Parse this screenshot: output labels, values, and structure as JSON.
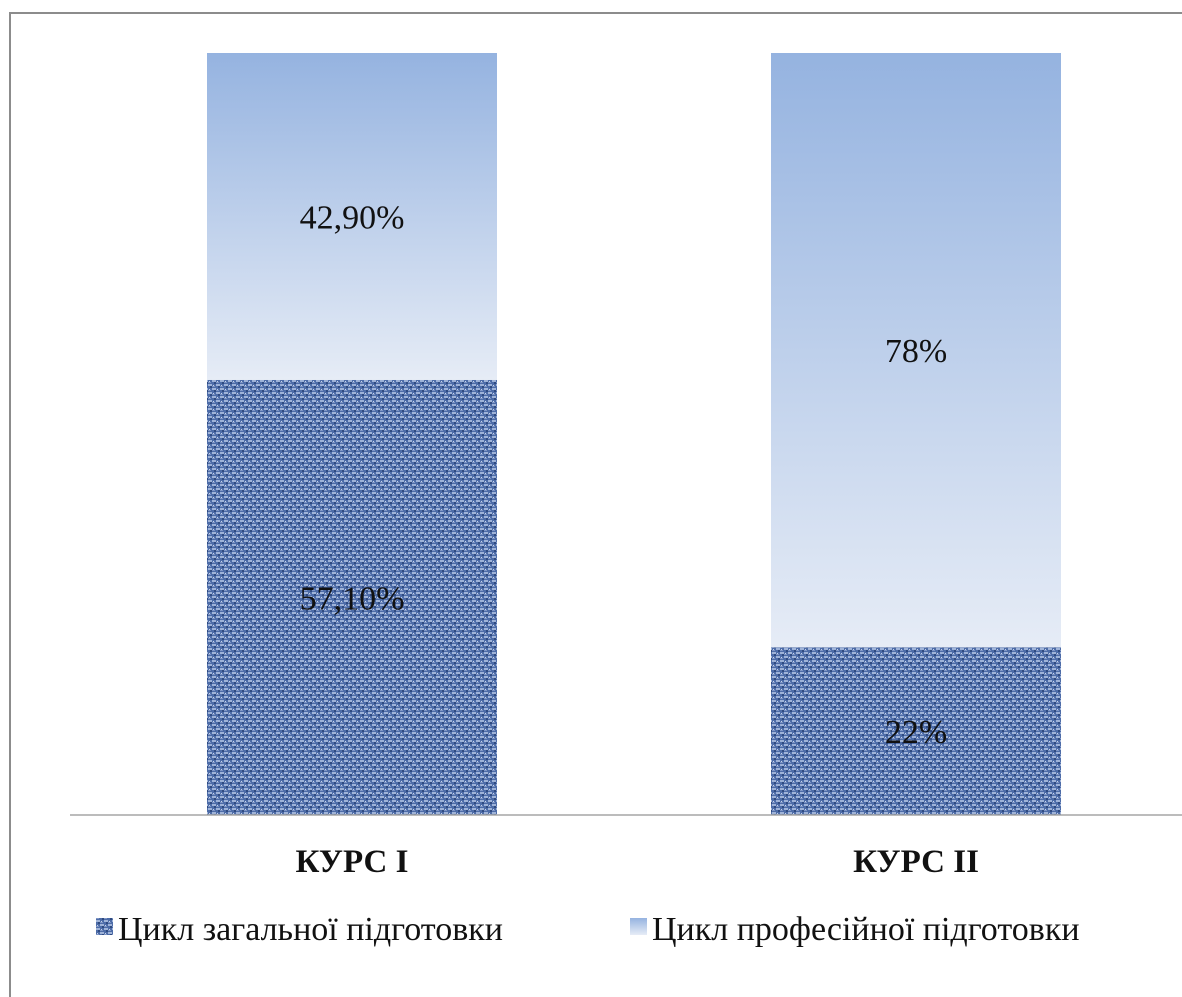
{
  "chart_data": {
    "type": "bar",
    "stacked": true,
    "categories": [
      "КУРС І",
      "КУРС ІІ"
    ],
    "series": [
      {
        "name": "Цикл загальної підготовки",
        "values": [
          57.1,
          22
        ],
        "labels": [
          "57,10%",
          "22%"
        ],
        "color": "#4a6aa8",
        "pattern": "textured"
      },
      {
        "name": "Цикл професійної підготовки",
        "values": [
          42.9,
          78
        ],
        "labels": [
          "42,90%",
          "78%"
        ],
        "color_top": "#95b3e0",
        "color_bottom": "#e6ecf6"
      }
    ],
    "ylim": [
      0,
      100
    ],
    "grid": false,
    "legend_position": "bottom"
  }
}
